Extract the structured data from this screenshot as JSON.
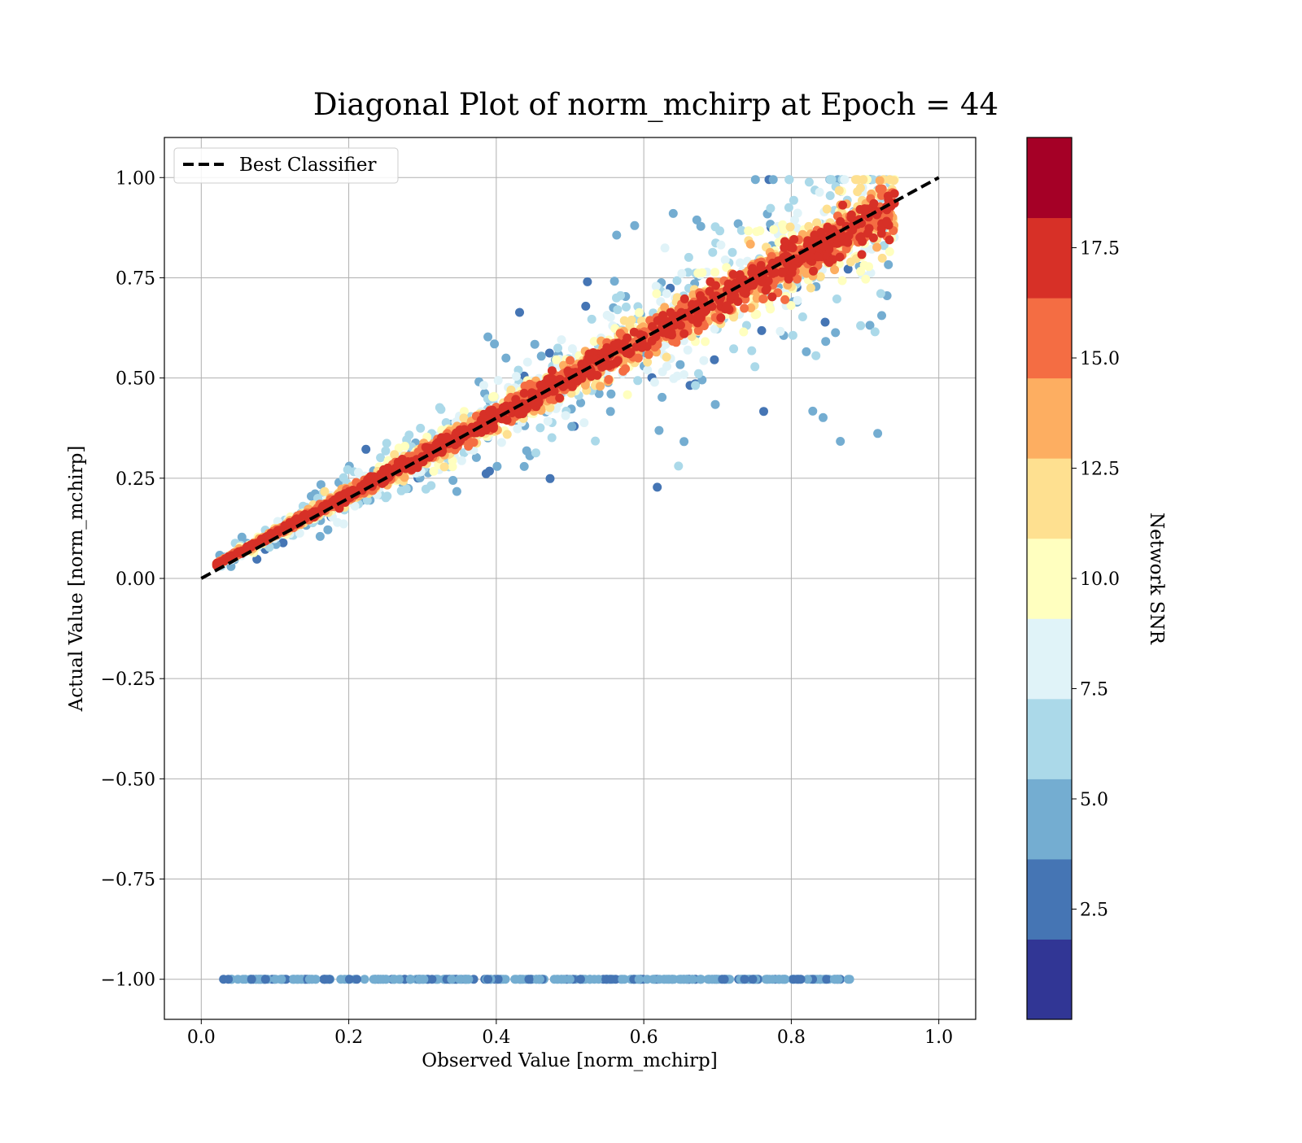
{
  "chart_data": {
    "type": "scatter",
    "title": "Diagonal Plot of norm_mchirp at Epoch = 44",
    "xlabel": "Observed Value [norm_mchirp]",
    "ylabel": "Actual Value [norm_mchirp]",
    "xlim": [
      -0.05,
      1.05
    ],
    "ylim": [
      -1.1,
      1.1
    ],
    "x_ticks": [
      0.0,
      0.2,
      0.4,
      0.6,
      0.8,
      1.0
    ],
    "x_tick_labels": [
      "0.0",
      "0.2",
      "0.4",
      "0.6",
      "0.8",
      "1.0"
    ],
    "y_ticks": [
      1.0,
      0.75,
      0.5,
      0.25,
      0.0,
      -0.25,
      -0.5,
      -0.75,
      -1.0
    ],
    "y_tick_labels": [
      "1.00",
      "0.75",
      "0.50",
      "0.25",
      "0.00",
      "−0.25",
      "−0.50",
      "−0.75",
      "−1.00"
    ],
    "grid": true,
    "legend": {
      "placement": "top-left",
      "entries": [
        {
          "label": "Best Classifier",
          "style": "dashed",
          "color": "#000000"
        }
      ]
    },
    "reference_line": {
      "name": "Best Classifier",
      "x": [
        0.0,
        1.0
      ],
      "y": [
        0.0,
        1.0
      ],
      "color": "#000000",
      "style": "dashed"
    },
    "colorbar": {
      "label": "Network SNR",
      "range": [
        0,
        20
      ],
      "ticks": [
        2.5,
        5.0,
        7.5,
        10.0,
        12.5,
        15.0,
        17.5
      ],
      "tick_labels": [
        "2.5",
        "5.0",
        "7.5",
        "10.0",
        "12.5",
        "15.0",
        "17.5"
      ],
      "colors": [
        "#313695",
        "#4575b4",
        "#74add1",
        "#abd9e9",
        "#e0f3f8",
        "#ffffbf",
        "#fee090",
        "#fdae61",
        "#f46d43",
        "#d73027",
        "#a50026"
      ]
    },
    "point_groups": [
      {
        "description": "diagonal cloud",
        "x_range": [
          0.02,
          0.94
        ],
        "y_model": "y ≈ x",
        "snr_range": [
          2.5,
          20
        ]
      },
      {
        "description": "noise band",
        "x_range": [
          0.03,
          0.88
        ],
        "y": -1.0,
        "snr_range": [
          2.5,
          7.5
        ]
      }
    ]
  }
}
